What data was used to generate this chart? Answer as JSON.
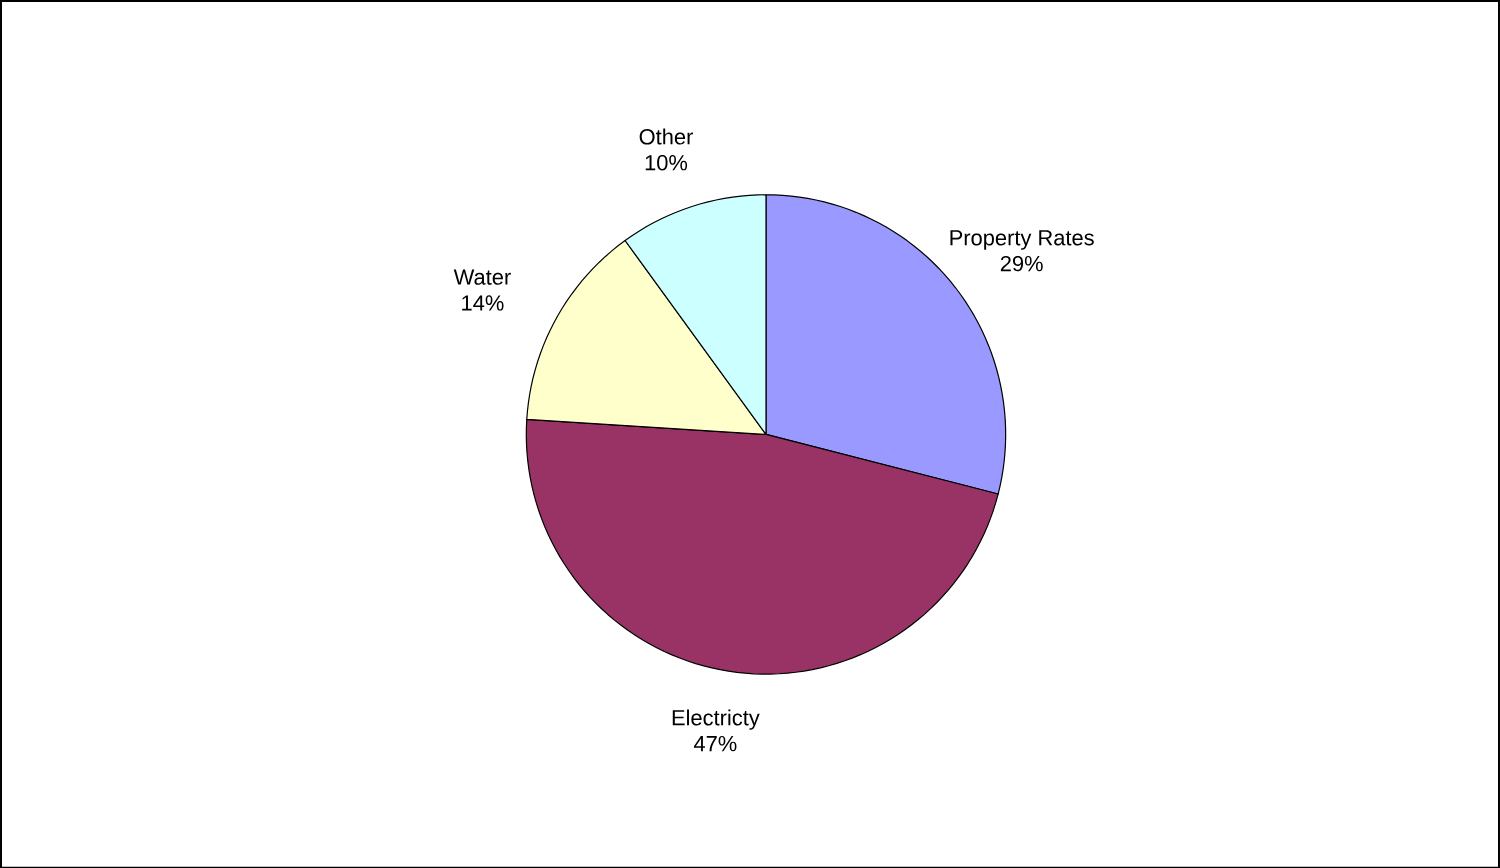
{
  "chart_data": {
    "type": "pie",
    "categories": [
      "Property Rates",
      "Electricty",
      "Water",
      "Other"
    ],
    "values": [
      29,
      47,
      14,
      10
    ],
    "value_labels": [
      "29%",
      "47%",
      "14%",
      "10%"
    ],
    "colors": [
      "#9999ff",
      "#993366",
      "#ffffcc",
      "#ccffff"
    ]
  }
}
